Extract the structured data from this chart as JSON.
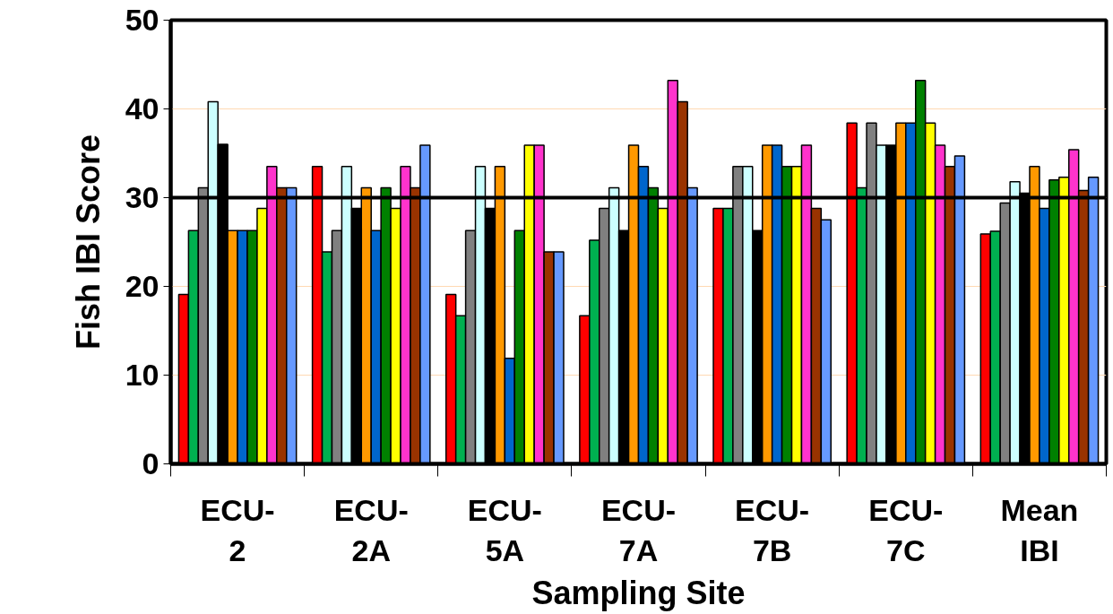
{
  "chart_data": {
    "type": "bar",
    "xlabel": "Sampling Site",
    "ylabel": "Fish IBI Score",
    "categories": [
      "ECU-2",
      "ECU-2A",
      "ECU-5A",
      "ECU-7A",
      "ECU-7B",
      "ECU-7C",
      "Mean IBI"
    ],
    "ylim": [
      0,
      50
    ],
    "yticks": [
      0,
      10,
      20,
      30,
      40,
      50
    ],
    "grid": "y",
    "ref_lines": [
      {
        "axis": "y",
        "value": 30,
        "color": "#000000"
      }
    ],
    "series": [
      {
        "color": "#ff0000",
        "values": [
          19.1,
          33.5,
          19.1,
          16.7,
          28.8,
          38.4,
          25.9
        ]
      },
      {
        "color": "#00b050",
        "values": [
          26.3,
          23.9,
          16.7,
          25.2,
          28.8,
          31.1,
          26.2
        ]
      },
      {
        "color": "#808080",
        "values": [
          31.1,
          26.3,
          26.3,
          28.8,
          33.5,
          38.4,
          29.4
        ]
      },
      {
        "color": "#ccffff",
        "values": [
          40.8,
          33.5,
          33.5,
          31.1,
          33.5,
          35.9,
          31.8
        ]
      },
      {
        "color": "#000000",
        "values": [
          36.0,
          28.8,
          28.8,
          26.3,
          26.3,
          35.9,
          30.5
        ]
      },
      {
        "color": "#ff9900",
        "values": [
          26.3,
          31.1,
          33.5,
          35.9,
          35.9,
          38.4,
          33.5
        ]
      },
      {
        "color": "#0066cc",
        "values": [
          26.3,
          26.3,
          11.9,
          33.5,
          35.9,
          38.4,
          28.8
        ]
      },
      {
        "color": "#008000",
        "values": [
          26.3,
          31.1,
          26.3,
          31.1,
          33.5,
          43.2,
          32.0
        ]
      },
      {
        "color": "#ffff00",
        "values": [
          28.8,
          28.8,
          35.9,
          28.8,
          33.5,
          38.4,
          32.3
        ]
      },
      {
        "color": "#ff33cc",
        "values": [
          33.5,
          33.5,
          35.9,
          43.2,
          35.9,
          35.9,
          35.4
        ]
      },
      {
        "color": "#993300",
        "values": [
          31.1,
          31.1,
          23.9,
          40.8,
          28.8,
          33.5,
          30.8
        ]
      },
      {
        "color": "#6699ff",
        "values": [
          31.1,
          35.9,
          23.9,
          31.1,
          27.5,
          34.7,
          32.3
        ]
      }
    ]
  }
}
